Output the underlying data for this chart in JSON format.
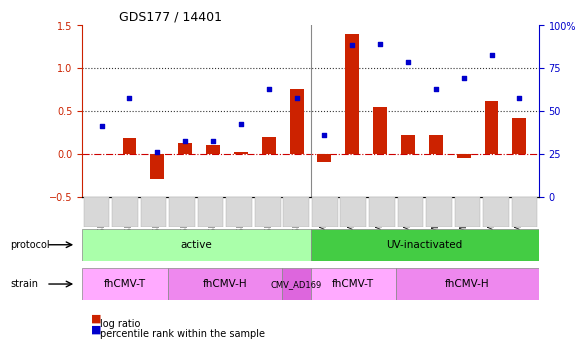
{
  "title": "GDS177 / 14401",
  "samples": [
    "GSM825",
    "GSM827",
    "GSM828",
    "GSM829",
    "GSM830",
    "GSM831",
    "GSM832",
    "GSM833",
    "GSM6822",
    "GSM6823",
    "GSM6824",
    "GSM6825",
    "GSM6818",
    "GSM6819",
    "GSM6820",
    "GSM6821"
  ],
  "log_ratio": [
    0.0,
    0.18,
    -0.3,
    0.12,
    0.1,
    0.02,
    0.2,
    0.75,
    -0.1,
    1.4,
    0.55,
    0.22,
    0.22,
    -0.05,
    0.62,
    0.42
  ],
  "pct_rank": [
    0.32,
    0.65,
    0.02,
    0.15,
    0.15,
    0.35,
    0.75,
    0.65,
    0.22,
    1.27,
    1.28,
    1.07,
    0.75,
    0.88,
    1.15,
    0.65
  ],
  "ylim_left": [
    -0.5,
    1.5
  ],
  "ylim_right": [
    0,
    100
  ],
  "yticks_left": [
    -0.5,
    0.0,
    0.5,
    1.0,
    1.5
  ],
  "yticks_right": [
    0,
    25,
    50,
    75,
    100
  ],
  "ytick_labels_right": [
    "0",
    "25",
    "50",
    "75",
    "100%"
  ],
  "hlines": [
    0.0,
    0.5,
    1.0
  ],
  "hline_styles": [
    "dashdot",
    "dotted",
    "dotted"
  ],
  "hline_colors": [
    "#cc0000",
    "#333333",
    "#333333"
  ],
  "bar_color": "#cc2200",
  "dot_color": "#0000cc",
  "bar_width": 0.5,
  "protocol_labels": [
    {
      "label": "active",
      "start": 0,
      "end": 7,
      "color": "#aaffaa"
    },
    {
      "label": "UV-inactivated",
      "start": 8,
      "end": 15,
      "color": "#44cc44"
    }
  ],
  "strain_groups": [
    {
      "label": "fhCMV-T",
      "start": 0,
      "end": 2,
      "color": "#ffaaff"
    },
    {
      "label": "fhCMV-H",
      "start": 3,
      "end": 6,
      "color": "#ee88ee"
    },
    {
      "label": "CMV_AD169",
      "start": 7,
      "end": 7,
      "color": "#dd66dd"
    },
    {
      "label": "fhCMV-T",
      "start": 8,
      "end": 10,
      "color": "#ffaaff"
    },
    {
      "label": "fhCMV-H",
      "start": 11,
      "end": 15,
      "color": "#ee88ee"
    }
  ],
  "legend_items": [
    {
      "label": "log ratio",
      "color": "#cc2200"
    },
    {
      "label": "percentile rank within the sample",
      "color": "#0000cc"
    }
  ],
  "xlabel_rotation": 90,
  "tick_label_size": 6.5,
  "axis_color_left": "#cc2200",
  "axis_color_right": "#0000cc",
  "bg_color": "#ffffff",
  "grid_color": "#cccccc"
}
